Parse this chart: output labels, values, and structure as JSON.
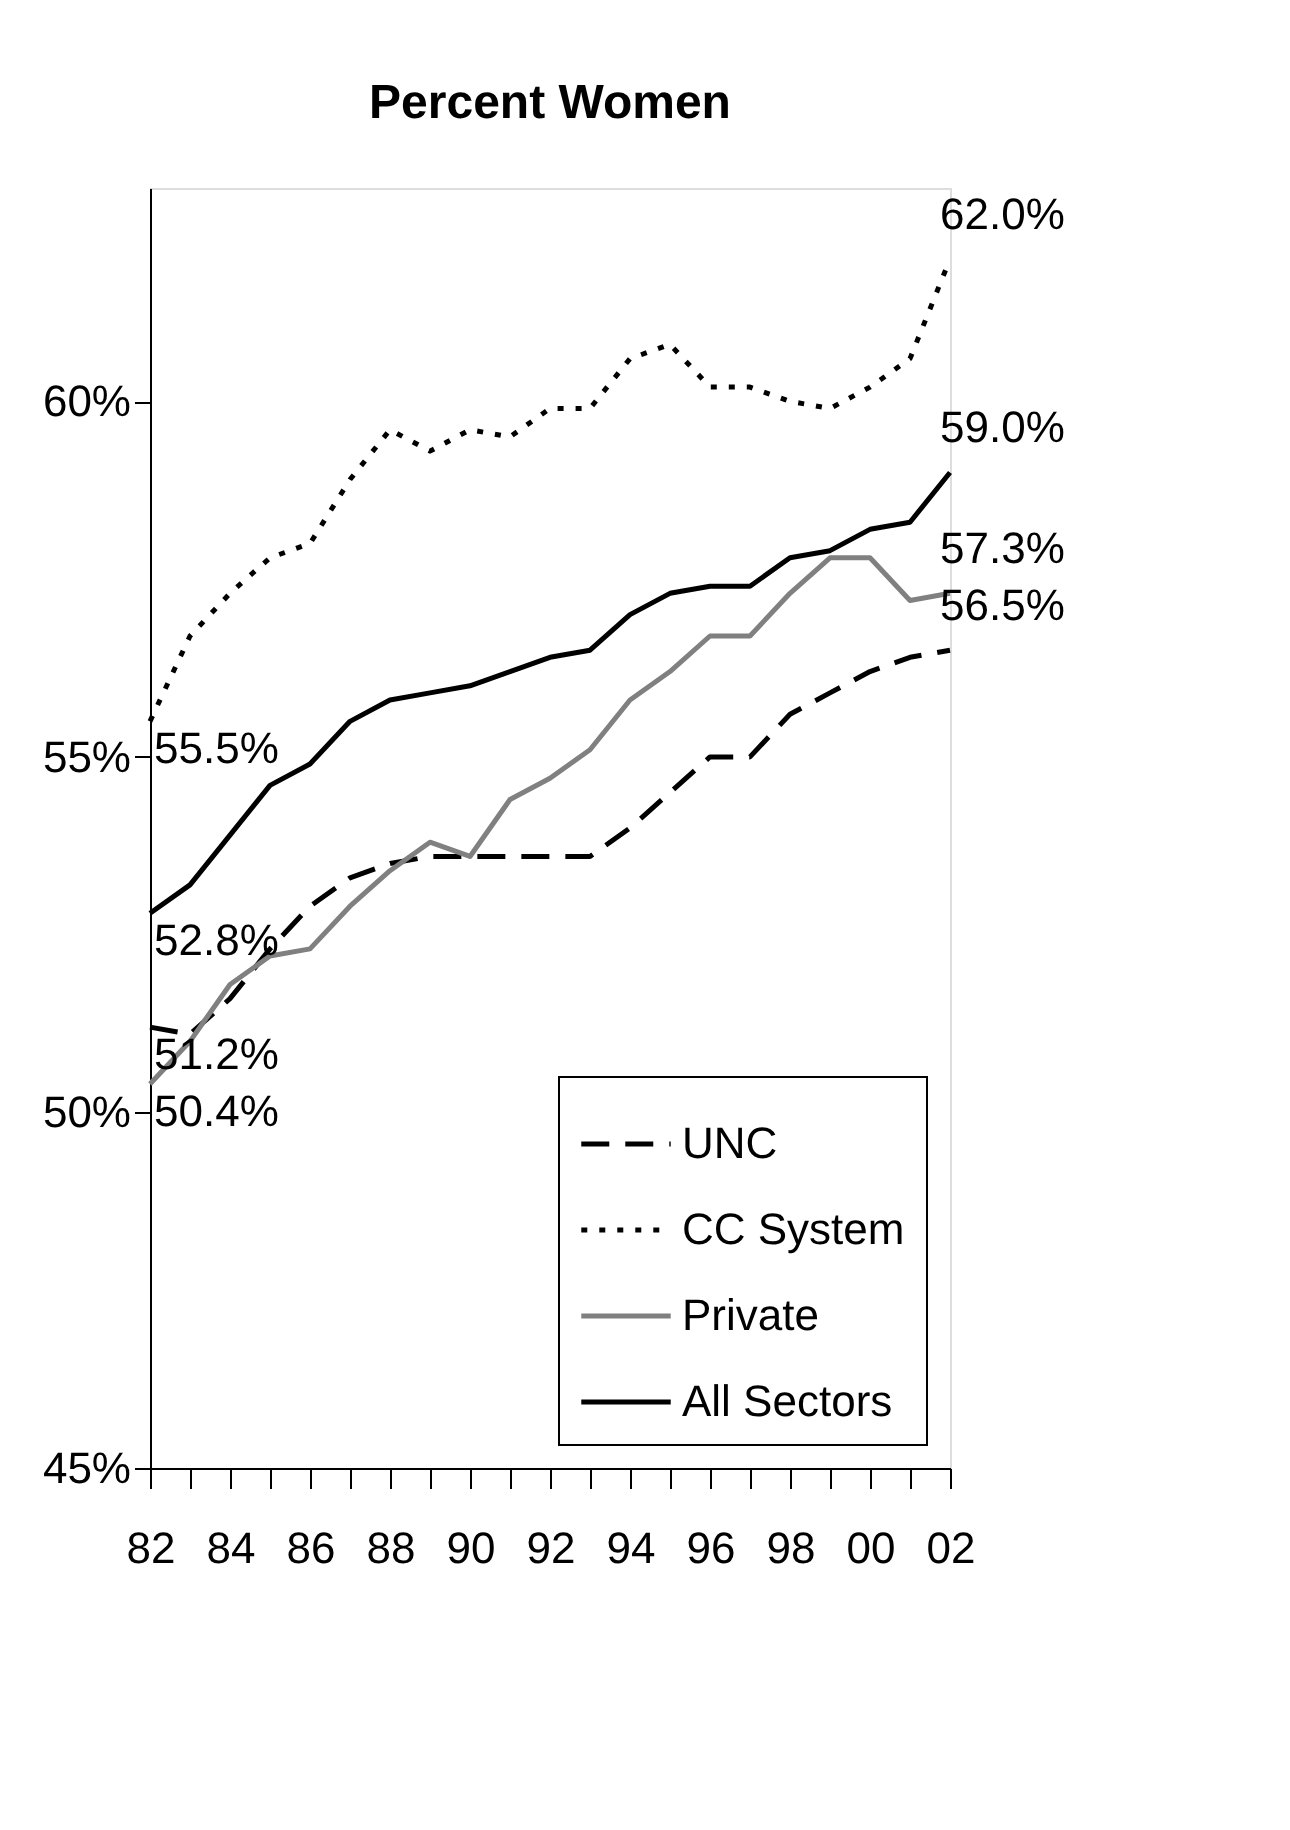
{
  "chart_data": {
    "type": "line",
    "title": "Percent Women",
    "x": [
      1982,
      1983,
      1984,
      1985,
      1986,
      1987,
      1988,
      1989,
      1990,
      1991,
      1992,
      1993,
      1994,
      1995,
      1996,
      1997,
      1998,
      1999,
      2000,
      2001,
      2002
    ],
    "series": [
      {
        "name": "UNC",
        "color": "#000000",
        "line_style": "dashed",
        "values": [
          51.2,
          51.1,
          51.6,
          52.3,
          52.9,
          53.3,
          53.5,
          53.6,
          53.6,
          53.6,
          53.6,
          53.6,
          54.0,
          54.5,
          55.0,
          55.0,
          55.6,
          55.9,
          56.2,
          56.4,
          56.5
        ],
        "value_labels": [
          "51.2%",
          null,
          null,
          null,
          null,
          null,
          null,
          null,
          null,
          null,
          null,
          null,
          null,
          null,
          null,
          null,
          null,
          null,
          null,
          null,
          "56.5%"
        ]
      },
      {
        "name": "CC System",
        "color": "#000000",
        "line_style": "dotted",
        "values": [
          55.5,
          56.7,
          57.3,
          57.8,
          58.0,
          58.9,
          59.6,
          59.3,
          59.6,
          59.5,
          59.9,
          59.9,
          60.6,
          60.8,
          60.2,
          60.2,
          60.0,
          59.9,
          60.2,
          60.6,
          62.0
        ],
        "value_labels": [
          "55.5%",
          null,
          null,
          null,
          null,
          null,
          null,
          null,
          null,
          null,
          null,
          null,
          null,
          null,
          null,
          null,
          null,
          null,
          null,
          null,
          "62.0%"
        ]
      },
      {
        "name": "Private",
        "color": "#808080",
        "line_style": "solid",
        "values": [
          50.4,
          51.0,
          51.8,
          52.2,
          52.3,
          52.9,
          53.4,
          53.8,
          53.6,
          54.4,
          54.7,
          55.1,
          55.8,
          56.2,
          56.7,
          56.7,
          57.3,
          57.8,
          57.8,
          57.2,
          57.3
        ],
        "value_labels": [
          "50.4%",
          null,
          null,
          null,
          null,
          null,
          null,
          null,
          null,
          null,
          null,
          null,
          null,
          null,
          null,
          null,
          null,
          null,
          null,
          null,
          "57.3%"
        ]
      },
      {
        "name": "All Sectors",
        "color": "#000000",
        "line_style": "solid",
        "values": [
          52.8,
          53.2,
          53.9,
          54.6,
          54.9,
          55.5,
          55.8,
          55.9,
          56.0,
          56.2,
          56.4,
          56.5,
          57.0,
          57.3,
          57.4,
          57.4,
          57.8,
          57.9,
          58.2,
          58.3,
          59.0
        ],
        "value_labels": [
          "52.8%",
          null,
          null,
          null,
          null,
          null,
          null,
          null,
          null,
          null,
          null,
          null,
          null,
          null,
          null,
          null,
          null,
          null,
          null,
          null,
          "59.0%"
        ]
      }
    ],
    "xlim": [
      1982,
      2002
    ],
    "xticks": [
      {
        "value": 1982,
        "label": "82"
      },
      {
        "value": 1983,
        "label": null
      },
      {
        "value": 1984,
        "label": "84"
      },
      {
        "value": 1985,
        "label": null
      },
      {
        "value": 1986,
        "label": "86"
      },
      {
        "value": 1987,
        "label": null
      },
      {
        "value": 1988,
        "label": "88"
      },
      {
        "value": 1989,
        "label": null
      },
      {
        "value": 1990,
        "label": "90"
      },
      {
        "value": 1991,
        "label": null
      },
      {
        "value": 1992,
        "label": "92"
      },
      {
        "value": 1993,
        "label": null
      },
      {
        "value": 1994,
        "label": "94"
      },
      {
        "value": 1995,
        "label": null
      },
      {
        "value": 1996,
        "label": "96"
      },
      {
        "value": 1997,
        "label": null
      },
      {
        "value": 1998,
        "label": "98"
      },
      {
        "value": 1999,
        "label": null
      },
      {
        "value": 2000,
        "label": "00"
      },
      {
        "value": 2001,
        "label": null
      },
      {
        "value": 2002,
        "label": "02"
      }
    ],
    "ylim": [
      45,
      63
    ],
    "yticks": [
      {
        "value": 45,
        "label": "45%"
      },
      {
        "value": 50,
        "label": "50%"
      },
      {
        "value": 55,
        "label": "55%"
      },
      {
        "value": 60,
        "label": "60%"
      }
    ],
    "grid": false,
    "legend": "bottom right",
    "marker": "none"
  }
}
